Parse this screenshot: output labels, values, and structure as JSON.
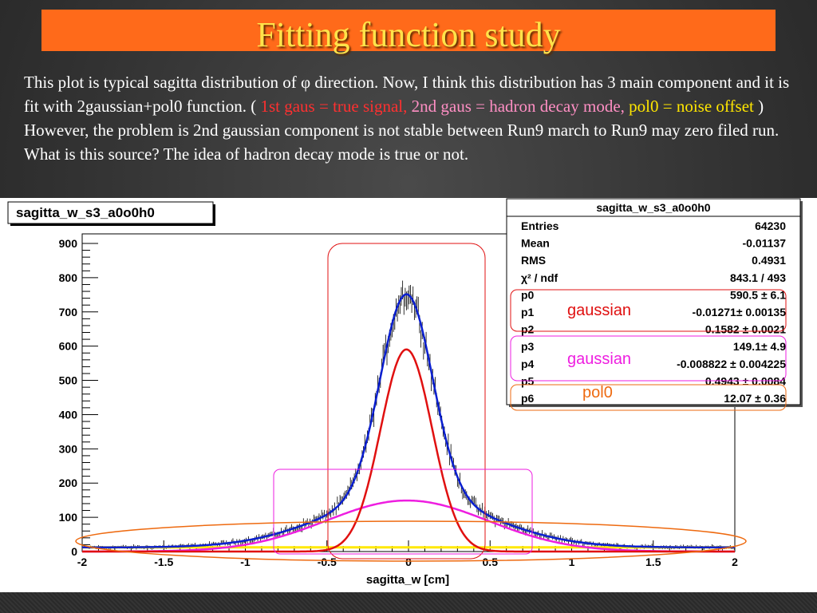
{
  "slide": {
    "title": "Fitting function study",
    "desc_1": " This plot is typical sagitta distribution of φ direction. Now, I think this distribution has 3 main component and it is fit with 2gaussian+pol0 function. (",
    "desc_red": " 1st gaus = true signal,",
    "desc_pink": " 2nd gaus = hadron decay mode,",
    "desc_yellow": " pol0  = noise offset",
    "desc_2": " ) However, the problem is 2nd gaussian component is not stable between Run9 march to Run9 may zero filed run. What is this source? The idea of hadron decay mode is true or not."
  },
  "histogram": {
    "name": "sagitta_w_s3_a0o0h0"
  },
  "stats_box": {
    "title": "sagitta_w_s3_a0o0h0",
    "rows": [
      {
        "label": "Entries",
        "value": "64230"
      },
      {
        "label": "Mean",
        "value": "-0.01137"
      },
      {
        "label": "RMS",
        "value": "0.4931"
      },
      {
        "label": "χ² / ndf",
        "value": "843.1 / 493"
      },
      {
        "label": "p0",
        "value": "590.5 ± 6.1"
      },
      {
        "label": "p1",
        "value": "-0.01271± 0.00135"
      },
      {
        "label": "p2",
        "value": "0.1582 ± 0.0021"
      },
      {
        "label": "p3",
        "value": "149.1± 4.9"
      },
      {
        "label": "p4",
        "value": "-0.008822 ± 0.004225"
      },
      {
        "label": "p5",
        "value": "0.4943 ± 0.0084"
      },
      {
        "label": "p6",
        "value": "12.07 ± 0.36"
      }
    ]
  },
  "annotations": {
    "gaussian1": "gaussian",
    "gaussian2": "gaussian",
    "pol0": "pol0"
  },
  "colors": {
    "total_fit": "#0a1fd0",
    "gaus1": "#e01010",
    "gaus2": "#ee1ee0",
    "pol0": "#ffe800",
    "data": "#000000",
    "ann_red": "#e01010",
    "ann_magenta": "#ee1ee0",
    "ann_orange": "#ee6a10"
  },
  "chart_data": {
    "type": "line",
    "title": "",
    "xlabel": "sagitta_w [cm]",
    "ylabel": "",
    "xlim": [
      -2,
      2
    ],
    "ylim": [
      0,
      900
    ],
    "x_ticks": [
      "-2",
      "-1.5",
      "-1",
      "-0.5",
      "0",
      "0.5",
      "1",
      "1.5",
      "2"
    ],
    "y_ticks": [
      "0",
      "100",
      "200",
      "300",
      "400",
      "500",
      "600",
      "700",
      "800",
      "900"
    ],
    "series": [
      {
        "component": "total",
        "formula": "gaus(p0,p1,p2)+gaus(p3,p4,p5)+p6"
      },
      {
        "component": "gaus1",
        "amplitude": 590.5,
        "mean": -0.01271,
        "sigma": 0.1582
      },
      {
        "component": "gaus2",
        "amplitude": 149.1,
        "mean": -0.008822,
        "sigma": 0.4943
      },
      {
        "component": "pol0",
        "value": 12.07
      }
    ]
  }
}
